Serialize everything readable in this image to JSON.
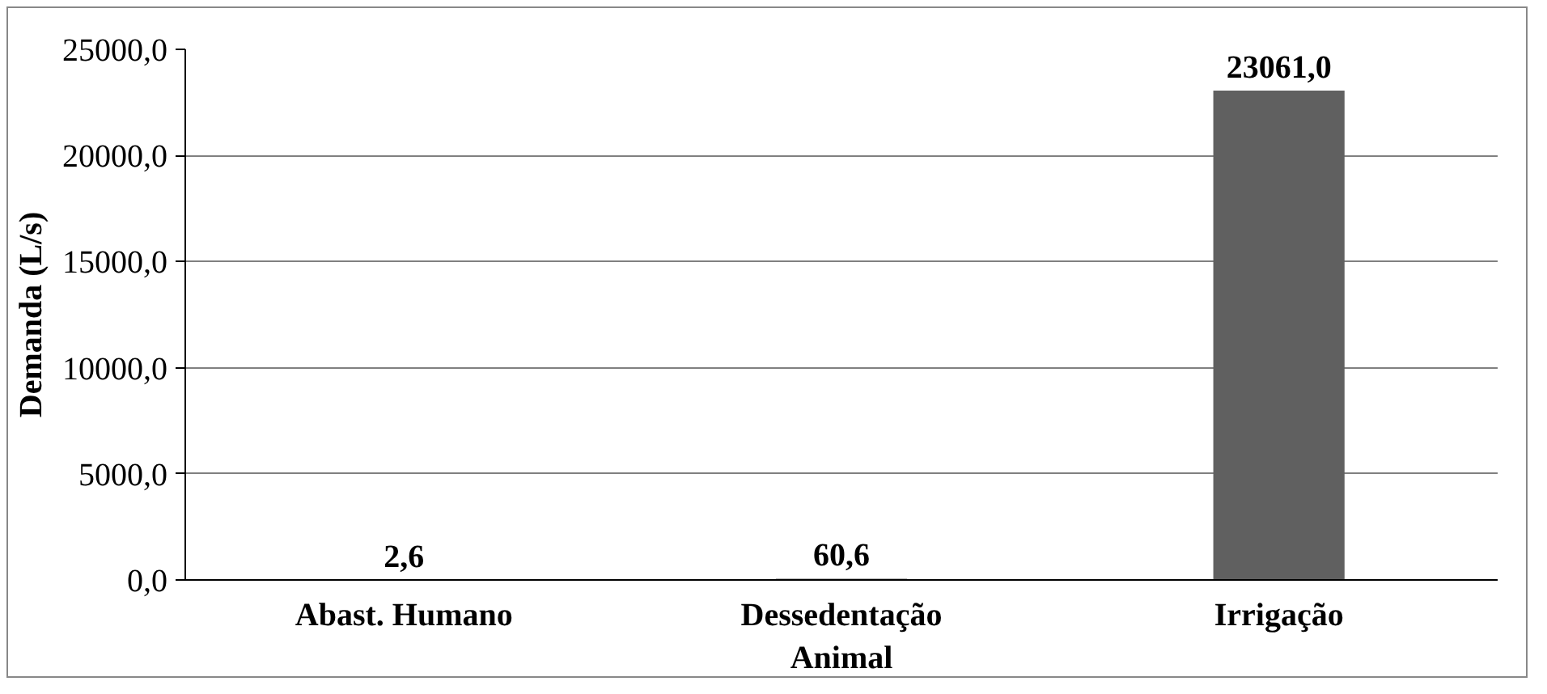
{
  "chart_data": {
    "type": "bar",
    "ylabel": "Demanda (L/s)",
    "categories": [
      "Abast. Humano",
      "Dessedentação Animal",
      "Irrigação"
    ],
    "values": [
      2.6,
      60.6,
      23061.0
    ],
    "color": "#606060",
    "value_labels": [
      "2,6",
      "60,6",
      "23061,0"
    ],
    "ylim": [
      0,
      25000
    ],
    "yticks": [
      {
        "value": 0,
        "label": "0,0"
      },
      {
        "value": 5000,
        "label": "5000,0"
      },
      {
        "value": 10000,
        "label": "10000,0"
      },
      {
        "value": 15000,
        "label": "15000,0"
      },
      {
        "value": 20000,
        "label": "20000,0"
      },
      {
        "value": 25000,
        "label": "25000,0"
      }
    ],
    "grid": "y"
  }
}
